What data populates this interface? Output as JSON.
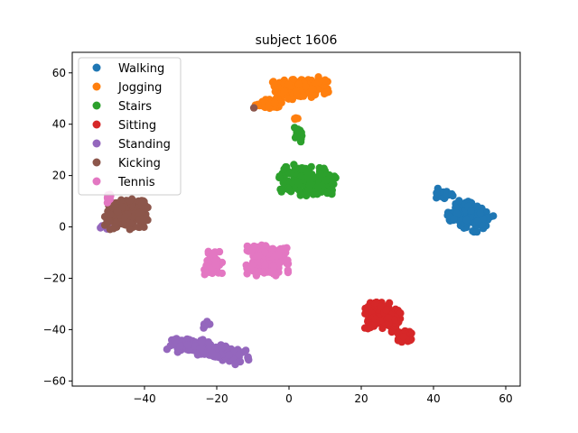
{
  "chart_data": {
    "type": "scatter",
    "title": "subject 1606",
    "xlabel": "",
    "ylabel": "",
    "xlim": [
      -60,
      64
    ],
    "ylim": [
      -62,
      68
    ],
    "xticks": [
      -40,
      -20,
      0,
      20,
      40,
      60
    ],
    "yticks": [
      -60,
      -40,
      -20,
      0,
      20,
      40,
      60
    ],
    "grid": false,
    "legend_position": "upper-left",
    "series": [
      {
        "name": "Walking",
        "color": "#1f77b4",
        "clusters": [
          {
            "cx": 50,
            "cy": 4,
            "rx": 6,
            "ry": 5,
            "n": 170,
            "angle": -0.55
          },
          {
            "cx": 43,
            "cy": 13,
            "rx": 2.5,
            "ry": 2,
            "n": 20,
            "angle": 0
          }
        ]
      },
      {
        "name": "Jogging",
        "color": "#ff7f0e",
        "clusters": [
          {
            "cx": 3,
            "cy": 54,
            "rx": 8,
            "ry": 4,
            "n": 150,
            "angle": 0.15
          },
          {
            "cx": -6,
            "cy": 48,
            "rx": 4,
            "ry": 2,
            "n": 40,
            "angle": 0
          },
          {
            "cx": 2,
            "cy": 42,
            "rx": 1,
            "ry": 0.6,
            "n": 4,
            "angle": 0
          }
        ]
      },
      {
        "name": "Stairs",
        "color": "#2ca02c",
        "clusters": [
          {
            "cx": 5,
            "cy": 18,
            "rx": 8,
            "ry": 6,
            "n": 160,
            "angle": -0.2
          },
          {
            "cx": 3,
            "cy": 36,
            "rx": 1.5,
            "ry": 3.5,
            "n": 12,
            "angle": 0
          }
        ]
      },
      {
        "name": "Sitting",
        "color": "#d62728",
        "clusters": [
          {
            "cx": 26,
            "cy": -35,
            "rx": 5,
            "ry": 6,
            "n": 160,
            "angle": 0
          },
          {
            "cx": 32,
            "cy": -43,
            "rx": 2,
            "ry": 2.5,
            "n": 30,
            "angle": 0
          }
        ]
      },
      {
        "name": "Standing",
        "color": "#9467bd",
        "clusters": [
          {
            "cx": -22,
            "cy": -48,
            "rx": 12,
            "ry": 3.5,
            "n": 180,
            "angle": -0.3
          },
          {
            "cx": -23,
            "cy": -38,
            "rx": 1.2,
            "ry": 1.5,
            "n": 8,
            "angle": 0
          },
          {
            "cx": -51,
            "cy": 0,
            "rx": 1.2,
            "ry": 1,
            "n": 6,
            "angle": 0
          }
        ]
      },
      {
        "name": "Kicking",
        "color": "#8c564b",
        "clusters": [
          {
            "cx": -45,
            "cy": 5,
            "rx": 6,
            "ry": 6,
            "n": 220,
            "angle": 0
          },
          {
            "cx": -10,
            "cy": 46,
            "rx": 0.6,
            "ry": 0.6,
            "n": 1,
            "angle": 0
          }
        ]
      },
      {
        "name": "Tennis",
        "color": "#e377c2",
        "clusters": [
          {
            "cx": -6,
            "cy": -13,
            "rx": 6,
            "ry": 6,
            "n": 150,
            "angle": 0
          },
          {
            "cx": -21,
            "cy": -14,
            "rx": 2.5,
            "ry": 5,
            "n": 40,
            "angle": 0
          },
          {
            "cx": -50,
            "cy": 11,
            "rx": 1,
            "ry": 2,
            "n": 10,
            "angle": 0
          }
        ]
      }
    ]
  }
}
